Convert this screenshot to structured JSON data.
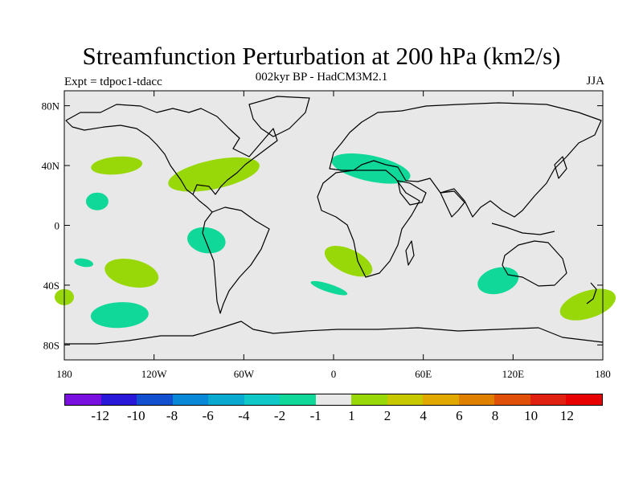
{
  "title": "Streamfunction Perturbation at 200 hPa (km2/s)",
  "subtitle": "002kyr BP - HadCM3M2.1",
  "experiment": "Expt = tdpoc1-tdacc",
  "season": "JJA",
  "chart_data": {
    "type": "heatmap",
    "projection": "cylindrical-equidistant",
    "title": "Streamfunction Perturbation at 200 hPa (km2/s)",
    "lon_range": [
      -180,
      180
    ],
    "lat_range": [
      -90,
      90
    ],
    "x_ticks": [
      {
        "value": -180,
        "label": "180"
      },
      {
        "value": -120,
        "label": "120W"
      },
      {
        "value": -60,
        "label": "60W"
      },
      {
        "value": 0,
        "label": "0"
      },
      {
        "value": 60,
        "label": "60E"
      },
      {
        "value": 120,
        "label": "120E"
      },
      {
        "value": 180,
        "label": "180"
      }
    ],
    "y_ticks": [
      {
        "value": 80,
        "label": "80N"
      },
      {
        "value": 40,
        "label": "40N"
      },
      {
        "value": 0,
        "label": "0"
      },
      {
        "value": -40,
        "label": "40S"
      },
      {
        "value": -80,
        "label": "80S"
      }
    ],
    "anomaly_regions": [
      {
        "region": "North Pacific",
        "lon": -145,
        "lat": 40,
        "level": "1 to 2"
      },
      {
        "region": "Hawaii area",
        "lon": -158,
        "lat": 16,
        "level": "-2 to -1"
      },
      {
        "region": "North Atlantic / Gulf of Mexico",
        "lon": -80,
        "lat": 34,
        "level": "1 to 2"
      },
      {
        "region": "Tropical eastern Pacific",
        "lon": -85,
        "lat": -10,
        "level": "-2 to -1"
      },
      {
        "region": "South Pacific",
        "lon": -135,
        "lat": -32,
        "level": "1 to 2"
      },
      {
        "region": "South Pacific",
        "lon": -167,
        "lat": -25,
        "level": "-2 to -1"
      },
      {
        "region": "Southern Ocean Pacific sector",
        "lon": -143,
        "lat": -60,
        "level": "-2 to -1"
      },
      {
        "region": "Mediterranean / Middle East",
        "lon": 25,
        "lat": 38,
        "level": "-2 to -1"
      },
      {
        "region": "South Atlantic",
        "lon": 10,
        "lat": -24,
        "level": "1 to 2"
      },
      {
        "region": "South of Africa",
        "lon": -3,
        "lat": -42,
        "level": "-2 to -1"
      },
      {
        "region": "Southern Australia",
        "lon": 110,
        "lat": -37,
        "level": "-2 to -1"
      },
      {
        "region": "New Zealand east",
        "lon": 170,
        "lat": -53,
        "level": "1 to 2"
      },
      {
        "region": "Southeast Pacific edge",
        "lon": -180,
        "lat": -48,
        "level": "1 to 2"
      }
    ],
    "levels": [
      -12,
      -10,
      -8,
      -6,
      -4,
      -2,
      -1,
      1,
      2,
      4,
      6,
      8,
      10,
      12
    ],
    "level_labels": [
      "-12",
      "-10",
      "-8",
      "-6",
      "-4",
      "-2",
      "-1",
      "1",
      "2",
      "4",
      "6",
      "8",
      "10",
      "12"
    ],
    "colors": [
      "#7a10e0",
      "#2a18d8",
      "#1250d0",
      "#0a88d8",
      "#0aaad0",
      "#10c8c8",
      "#10d898",
      "#e8e8e8",
      "#98d808",
      "#c8c800",
      "#e0a800",
      "#e08000",
      "#e05008",
      "#e02010",
      "#e80000"
    ],
    "fill_colors": {
      "negative_small": "#10d898",
      "positive_small": "#98d808",
      "background": "#e8e8e8"
    }
  }
}
